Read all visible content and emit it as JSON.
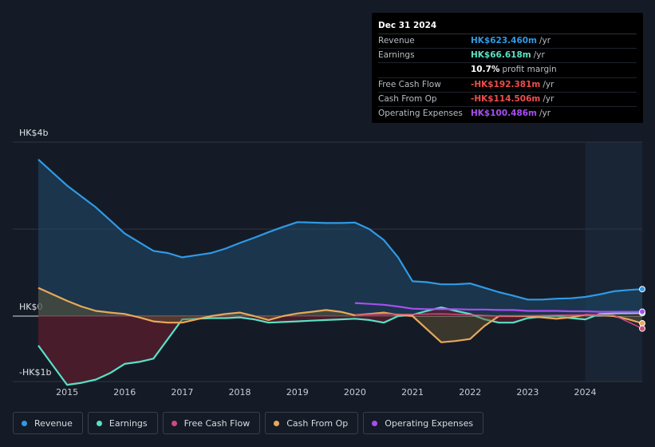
{
  "tooltip": {
    "date": "Dec 31 2024",
    "rows": [
      {
        "label": "Revenue",
        "value": "HK$623.460m",
        "unit": "/yr",
        "color": "#2f9ae6"
      },
      {
        "label": "Earnings",
        "value": "HK$66.618m",
        "unit": "/yr",
        "color": "#59e1c6"
      },
      {
        "label": "",
        "value": "10.7%",
        "unit": "profit margin",
        "color": "#ffffff"
      },
      {
        "label": "Free Cash Flow",
        "value": "-HK$192.381m",
        "unit": "/yr",
        "color": "#ef4d4d"
      },
      {
        "label": "Cash From Op",
        "value": "-HK$114.506m",
        "unit": "/yr",
        "color": "#ef4d4d"
      },
      {
        "label": "Operating Expenses",
        "value": "HK$100.486m",
        "unit": "/yr",
        "color": "#a64ff0"
      }
    ]
  },
  "legend": [
    {
      "label": "Revenue",
      "color": "#2f9ae6"
    },
    {
      "label": "Earnings",
      "color": "#59e1c6"
    },
    {
      "label": "Free Cash Flow",
      "color": "#d14a7d"
    },
    {
      "label": "Cash From Op",
      "color": "#e9a85b"
    },
    {
      "label": "Operating Expenses",
      "color": "#a64ff0"
    }
  ],
  "chart_data": {
    "type": "line",
    "currency_unit": "HK$ billions",
    "y_tick_labels": [
      "HK$4b",
      "HK$0",
      "-HK$1b"
    ],
    "ylim": [
      -1.0,
      4.0
    ],
    "xlim": [
      2014.5,
      2024.99
    ],
    "x_tick_labels": [
      "2015",
      "2016",
      "2017",
      "2018",
      "2019",
      "2020",
      "2021",
      "2022",
      "2023",
      "2024"
    ],
    "x_ticks": [
      2015,
      2016,
      2017,
      2018,
      2019,
      2020,
      2021,
      2022,
      2023,
      2024
    ],
    "highlight_start": 2024.0,
    "series": [
      {
        "name": "Revenue",
        "color": "#2f9ae6",
        "fill": true,
        "x": [
          2014.5,
          2014.75,
          2015,
          2015.25,
          2015.5,
          2015.75,
          2016,
          2016.25,
          2016.5,
          2016.75,
          2017,
          2017.25,
          2017.5,
          2017.75,
          2018,
          2018.25,
          2018.5,
          2018.75,
          2019,
          2019.25,
          2019.5,
          2019.75,
          2020,
          2020.25,
          2020.5,
          2020.75,
          2021,
          2021.25,
          2021.5,
          2021.75,
          2022,
          2022.25,
          2022.5,
          2022.75,
          2023,
          2023.25,
          2023.5,
          2023.75,
          2024,
          2024.25,
          2024.5,
          2024.75,
          2024.99
        ],
        "y": [
          3.6,
          3.3,
          3.0,
          2.75,
          2.5,
          2.2,
          1.9,
          1.7,
          1.5,
          1.45,
          1.35,
          1.4,
          1.45,
          1.55,
          1.68,
          1.8,
          1.93,
          2.05,
          2.16,
          2.15,
          2.14,
          2.14,
          2.15,
          2.0,
          1.75,
          1.35,
          0.8,
          0.78,
          0.73,
          0.73,
          0.75,
          0.65,
          0.55,
          0.47,
          0.38,
          0.38,
          0.4,
          0.41,
          0.44,
          0.5,
          0.57,
          0.6,
          0.62
        ]
      },
      {
        "name": "Earnings",
        "color": "#59e1c6",
        "fill": true,
        "x": [
          2014.5,
          2014.75,
          2015,
          2015.25,
          2015.5,
          2015.75,
          2016,
          2016.25,
          2016.5,
          2016.75,
          2017,
          2017.25,
          2017.5,
          2017.75,
          2018,
          2018.25,
          2018.5,
          2018.75,
          2019,
          2019.25,
          2019.5,
          2019.75,
          2020,
          2020.25,
          2020.5,
          2020.75,
          2021,
          2021.25,
          2021.5,
          2021.75,
          2022,
          2022.25,
          2022.5,
          2022.75,
          2023,
          2023.25,
          2023.5,
          2023.75,
          2024,
          2024.25,
          2024.5,
          2024.75,
          2024.99
        ],
        "y": [
          -0.45,
          -0.75,
          -1.05,
          -1.02,
          -0.97,
          -0.87,
          -0.73,
          -0.7,
          -0.65,
          -0.35,
          -0.05,
          -0.04,
          -0.03,
          -0.03,
          -0.02,
          -0.05,
          -0.1,
          -0.09,
          -0.08,
          -0.07,
          -0.06,
          -0.05,
          -0.04,
          -0.06,
          -0.1,
          0.0,
          0.03,
          0.12,
          0.2,
          0.12,
          0.05,
          -0.05,
          -0.1,
          -0.1,
          -0.03,
          -0.01,
          0.0,
          -0.03,
          -0.05,
          0.05,
          0.06,
          0.065,
          0.067
        ]
      },
      {
        "name": "Free Cash Flow",
        "color": "#d14a7d",
        "fill": false,
        "x": [
          2020.0,
          2020.5,
          2021,
          2021.5,
          2022,
          2022.5,
          2023,
          2023.5,
          2024,
          2024.5,
          2024.99
        ],
        "y": [
          0.02,
          0.05,
          0.04,
          0.05,
          0.03,
          0.0,
          0.01,
          0.02,
          0.03,
          0.02,
          -0.19
        ]
      },
      {
        "name": "Cash From Op",
        "color": "#e9a85b",
        "fill": true,
        "x": [
          2014.5,
          2014.75,
          2015,
          2015.25,
          2015.5,
          2015.75,
          2016,
          2016.25,
          2016.5,
          2016.75,
          2017,
          2017.25,
          2017.5,
          2017.75,
          2018,
          2018.25,
          2018.5,
          2018.75,
          2019,
          2019.25,
          2019.5,
          2019.75,
          2020,
          2020.25,
          2020.5,
          2020.75,
          2021,
          2021.25,
          2021.5,
          2021.75,
          2022,
          2022.25,
          2022.5,
          2022.75,
          2023,
          2023.25,
          2023.5,
          2023.75,
          2024,
          2024.25,
          2024.5,
          2024.75,
          2024.99
        ],
        "y": [
          0.65,
          0.5,
          0.35,
          0.22,
          0.12,
          0.08,
          0.05,
          -0.02,
          -0.08,
          -0.1,
          -0.1,
          -0.05,
          0.0,
          0.05,
          0.08,
          0.0,
          -0.06,
          0.0,
          0.06,
          0.1,
          0.14,
          0.1,
          0.02,
          0.05,
          0.08,
          0.03,
          0.0,
          -0.2,
          -0.4,
          -0.38,
          -0.35,
          -0.15,
          0.0,
          0.0,
          0.0,
          -0.02,
          -0.04,
          -0.02,
          0.03,
          0.02,
          0.0,
          -0.05,
          -0.11
        ]
      },
      {
        "name": "Operating Expenses",
        "color": "#a64ff0",
        "fill": false,
        "x": [
          2020.0,
          2020.25,
          2020.5,
          2020.75,
          2021,
          2021.25,
          2021.5,
          2021.75,
          2022,
          2022.25,
          2022.5,
          2022.75,
          2023,
          2023.25,
          2023.5,
          2023.75,
          2024,
          2024.25,
          2024.5,
          2024.75,
          2024.99
        ],
        "y": [
          0.3,
          0.28,
          0.26,
          0.22,
          0.17,
          0.16,
          0.16,
          0.16,
          0.15,
          0.15,
          0.14,
          0.14,
          0.12,
          0.12,
          0.12,
          0.11,
          0.11,
          0.1,
          0.1,
          0.1,
          0.1
        ]
      }
    ]
  }
}
